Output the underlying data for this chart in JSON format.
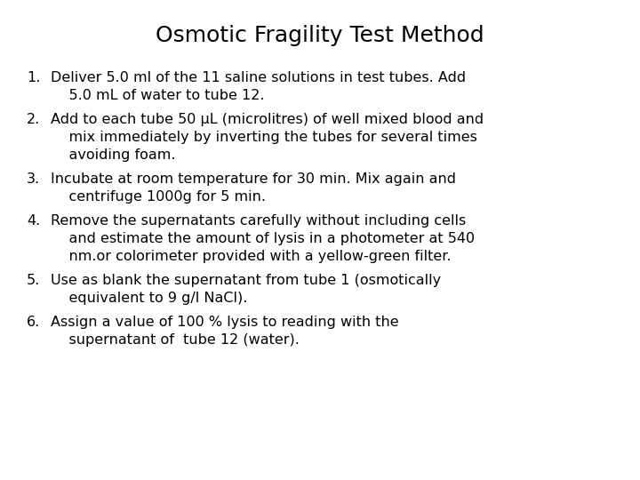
{
  "title": "Osmotic Fragility Test Method",
  "title_fontsize": 18,
  "background_color": "#ffffff",
  "text_color": "#000000",
  "text_fontsize": 11.5,
  "font_family": "DejaVu Sans",
  "items": [
    {
      "number": "1.",
      "lines": [
        "Deliver 5.0 ml of the 11 saline solutions in test tubes. Add",
        "    5.0 mL of water to tube 12."
      ]
    },
    {
      "number": "2.",
      "lines": [
        "Add to each tube 50 μL (microlitres) of well mixed blood and",
        "    mix immediately by inverting the tubes for several times",
        "    avoiding foam."
      ]
    },
    {
      "number": "3.",
      "lines": [
        "Incubate at room temperature for 30 min. Mix again and",
        "    centrifuge 1000g for 5 min."
      ]
    },
    {
      "number": "4.",
      "lines": [
        "Remove the supernatants carefully without including cells",
        "    and estimate the amount of lysis in a photometer at 540",
        "    nm.or colorimeter provided with a yellow-green filter."
      ]
    },
    {
      "number": "5.",
      "lines": [
        "Use as blank the supernatant from tube 1 (osmotically",
        "    equivalent to 9 g/l NaCl)."
      ]
    },
    {
      "number": "6.",
      "lines": [
        "Assign a value of 100 % lysis to reading with the",
        "    supernatant of  tube 12 (water)."
      ]
    }
  ]
}
